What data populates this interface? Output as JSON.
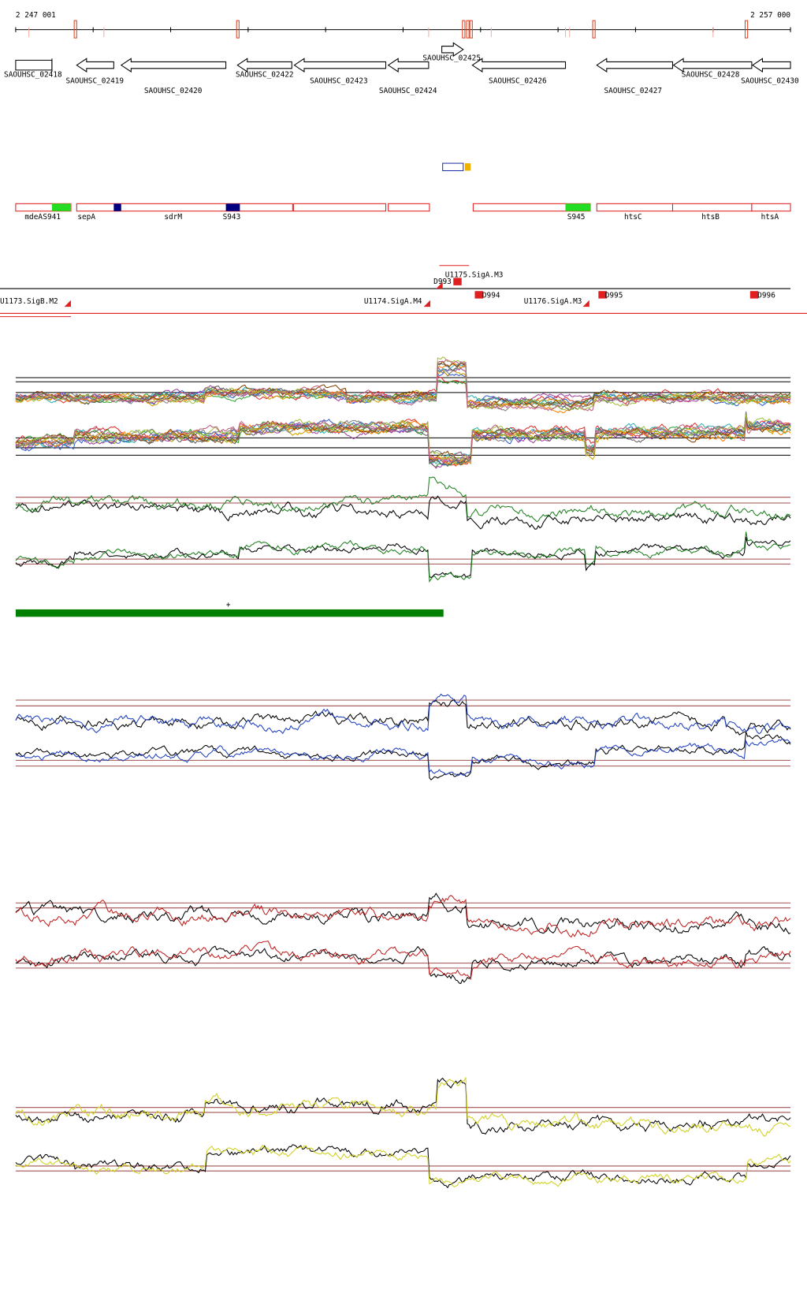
{
  "ruler": {
    "start": "2 247 001",
    "end": "2 257 000"
  },
  "genes": [
    "SAOUHSC_02418",
    "SAOUHSC_02419",
    "SAOUHSC_02420",
    "SAOUHSC_02422",
    "SAOUHSC_02423",
    "SAOUHSC_02424",
    "SAOUHSC_02425",
    "SAOUHSC_02426",
    "SAOUHSC_02427",
    "SAOUHSC_02428",
    "SAOUHSC_02430"
  ],
  "features": [
    "mdeA",
    "S941",
    "sepA",
    "sdrM",
    "S943",
    "S945",
    "htsC",
    "htsB",
    "htsA"
  ],
  "promoters": [
    "U1173.SigB.M2",
    "U1174.SigA.M4",
    "U1175.SigA.M3",
    "U1176.SigA.M3",
    "D993",
    "D994",
    "D995",
    "D996"
  ],
  "strand_label": "+"
}
